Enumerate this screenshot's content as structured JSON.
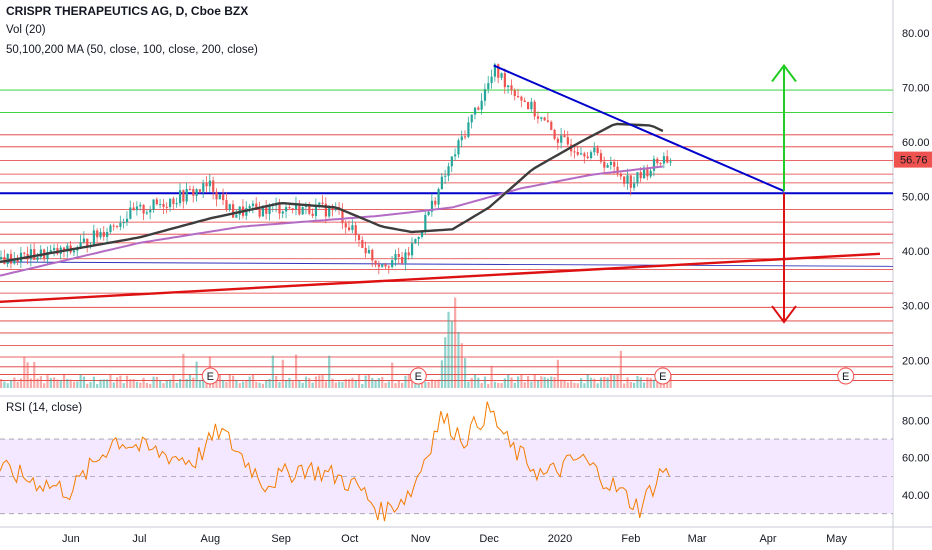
{
  "header": {
    "symbol_line": "CRISPR THERAPEUTICS AG, D, Cboe BZX",
    "volume_line": "Vol (20)",
    "ma_line": "50,100,200 MA (50, close, 100, close, 200, close)",
    "rsi_line": "RSI (14, close)"
  },
  "colors": {
    "up_candle": "#26a69a",
    "down_candle": "#ef5350",
    "ma50": "#3d3d3d",
    "ma200": "#b36bc4",
    "trendline_blue": "#0000cc",
    "trendline_red": "#dd1111",
    "target_up": "#22cc22",
    "target_down": "#dd1111",
    "rsi_line": "#f57c00",
    "rsi_band": "#f3e8ff",
    "price_tag": "#ef5350"
  },
  "chart_data": [
    {
      "type": "candlestick",
      "title": "CRISPR THERAPEUTICS AG, D, Cboe BZX",
      "last_price": 56.76,
      "ylim": [
        14,
        86
      ],
      "y_ticks": [
        20,
        30,
        40,
        50,
        60,
        70,
        80
      ],
      "y_tick_labels": [
        "20.00",
        "30.00",
        "40.00",
        "50.00",
        "60.00",
        "70.00",
        "80.00"
      ],
      "x_ticks": [
        "Jun",
        "Jul",
        "Aug",
        "Sep",
        "Oct",
        "Nov",
        "Dec",
        "2020",
        "Feb",
        "Mar",
        "Apr",
        "May"
      ],
      "earnings_markers": [
        "E",
        "E",
        "E",
        "E"
      ],
      "horizontal_support_resistance_levels_red": [
        61.3,
        59.1,
        56.6,
        54.1,
        52.5,
        47.6,
        45.3,
        43.1,
        41.5,
        38.6,
        36.6,
        34.4,
        32.3,
        29.7,
        27.2,
        25.0,
        22.7,
        20.6,
        18.8,
        17.4,
        16.3
      ],
      "horizontal_levels_green": [
        69.5,
        65.4
      ],
      "key_level_blue": 50.6,
      "descending_trendline": {
        "from": {
          "x": "2019-12-03",
          "y": 74.0
        },
        "to": {
          "x": "2020-04-08",
          "y": 51.0
        }
      },
      "ascending_trendline": {
        "from": {
          "x": "2019-05-01",
          "y": 30.7
        },
        "to": {
          "x": "2020-05-20",
          "y": 39.5
        }
      },
      "target_up": {
        "x": "2020-04-08",
        "from": 51.0,
        "to": 74.0
      },
      "target_down": {
        "x": "2020-04-08",
        "from": 50.6,
        "to": 27.0
      },
      "series": [
        {
          "name": "price",
          "x": [
            "2019-05-01",
            "2019-06-01",
            "2019-06-25",
            "2019-07-15",
            "2019-08-01",
            "2019-08-10",
            "2019-09-01",
            "2019-09-25",
            "2019-10-01",
            "2019-10-12",
            "2019-10-25",
            "2019-11-05",
            "2019-11-20",
            "2019-12-03",
            "2019-12-15",
            "2020-01-01",
            "2020-01-15",
            "2020-02-01",
            "2020-02-14",
            "2020-02-19"
          ],
          "values": [
            38.5,
            40.0,
            46.5,
            49.5,
            52.0,
            47.0,
            48.0,
            47.5,
            44.0,
            38.0,
            38.5,
            48.0,
            62.0,
            73.0,
            68.0,
            60.0,
            58.0,
            52.5,
            57.0,
            56.76
          ]
        },
        {
          "name": "50 MA",
          "x": [
            "2019-05-01",
            "2019-07-01",
            "2019-08-01",
            "2019-09-01",
            "2019-09-25",
            "2019-10-15",
            "2019-10-28",
            "2019-11-15",
            "2019-12-01",
            "2019-12-20",
            "2020-01-10",
            "2020-01-25",
            "2020-02-10",
            "2020-02-15"
          ],
          "values": [
            38.0,
            42.5,
            46.0,
            48.8,
            48.0,
            44.5,
            43.5,
            44.0,
            48.0,
            55.0,
            60.0,
            63.3,
            63.0,
            62.0
          ]
        },
        {
          "name": "200 MA",
          "x": [
            "2019-05-01",
            "2019-07-01",
            "2019-08-15",
            "2019-09-15",
            "2019-10-15",
            "2019-11-15",
            "2019-12-15",
            "2020-01-15",
            "2020-02-15"
          ],
          "values": [
            35.5,
            41.5,
            44.5,
            45.5,
            46.5,
            48.0,
            51.5,
            54.0,
            55.5
          ]
        }
      ]
    },
    {
      "type": "bar",
      "title": "Vol (20)",
      "x": [
        "2019-05-01",
        "2019-11-15",
        "2020-02-19"
      ],
      "values": [
        0.2,
        1.0,
        0.4
      ]
    },
    {
      "type": "line",
      "title": "RSI (14, close)",
      "ylim": [
        25,
        92
      ],
      "y_ticks": [
        40,
        60,
        80
      ],
      "y_tick_labels": [
        "40.00",
        "60.00",
        "80.00"
      ],
      "band": [
        30,
        70
      ],
      "x": [
        "2019-05-01",
        "2019-05-15",
        "2019-06-01",
        "2019-06-20",
        "2019-07-05",
        "2019-07-25",
        "2019-08-05",
        "2019-08-25",
        "2019-09-10",
        "2019-09-25",
        "2019-10-05",
        "2019-10-15",
        "2019-10-28",
        "2019-11-10",
        "2019-11-20",
        "2019-12-01",
        "2019-12-10",
        "2019-12-25",
        "2020-01-10",
        "2020-01-25",
        "2020-02-05",
        "2020-02-15",
        "2020-02-19"
      ],
      "values": [
        54,
        48,
        42,
        70,
        64,
        58,
        75,
        46,
        55,
        50,
        44,
        30,
        42,
        82,
        70,
        86,
        66,
        50,
        60,
        44,
        33,
        54,
        50
      ]
    }
  ]
}
